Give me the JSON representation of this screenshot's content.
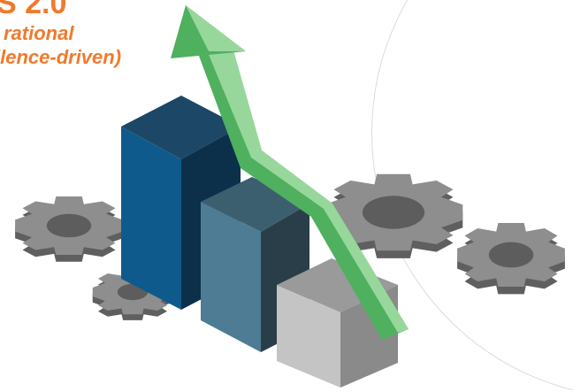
{
  "header": {
    "title": "S 2.0",
    "subtitle_line1": "rational",
    "subtitle_line2": "llence-driven)"
  },
  "illustration": {
    "bars": [
      "dark-blue-bar",
      "steel-blue-bar",
      "grey-cube"
    ],
    "arrow": "green-upward-arrow",
    "gears": [
      "left-gear",
      "small-gear",
      "center-right-gear",
      "right-gear"
    ]
  },
  "colors": {
    "accent_orange": "#f07a2c",
    "arrow_green": "#5cbf6a",
    "arrow_light": "#9ed9a2",
    "bar_dark_blue": "#0f5a8c",
    "bar_steel_blue": "#4e7c95",
    "cube_grey": "#b5b5b5",
    "gear_grey": "#8c8c8c"
  }
}
